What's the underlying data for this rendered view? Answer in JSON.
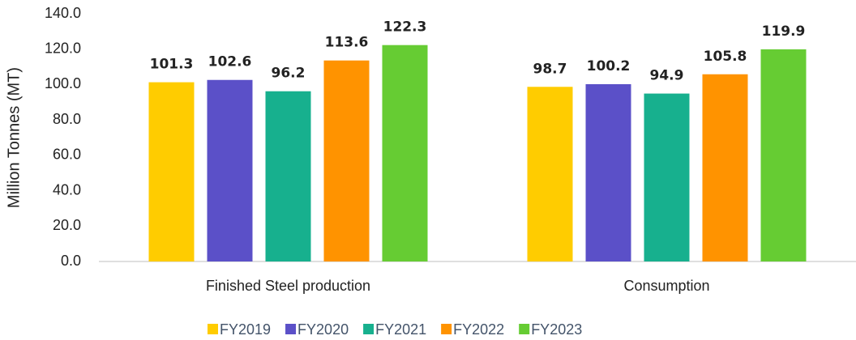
{
  "chart_data": {
    "type": "bar",
    "y_label": "Million Tonnes (MT)",
    "categories": [
      "Finished Steel production",
      "Consumption"
    ],
    "series": [
      {
        "name": "FY2019",
        "color": "#ffcc00",
        "values": [
          101.3,
          98.7
        ]
      },
      {
        "name": "FY2020",
        "color": "#5b50c8",
        "values": [
          102.6,
          100.2
        ]
      },
      {
        "name": "FY2021",
        "color": "#17b08e",
        "values": [
          96.2,
          94.9
        ]
      },
      {
        "name": "FY2022",
        "color": "#ff9300",
        "values": [
          113.6,
          105.8
        ]
      },
      {
        "name": "FY2023",
        "color": "#66cc33",
        "values": [
          122.3,
          119.9
        ]
      }
    ],
    "ylim": [
      0,
      140
    ],
    "yticks": [
      {
        "value": 0,
        "label": "0.0"
      },
      {
        "value": 20,
        "label": "20.0"
      },
      {
        "value": 40,
        "label": "40.0"
      },
      {
        "value": 60,
        "label": "60.0"
      },
      {
        "value": 80,
        "label": "80.0"
      },
      {
        "value": 100,
        "label": "100.0"
      },
      {
        "value": 120,
        "label": "120.0"
      },
      {
        "value": 140,
        "label": "140.0"
      }
    ],
    "grid": false,
    "legend": "bottom"
  }
}
